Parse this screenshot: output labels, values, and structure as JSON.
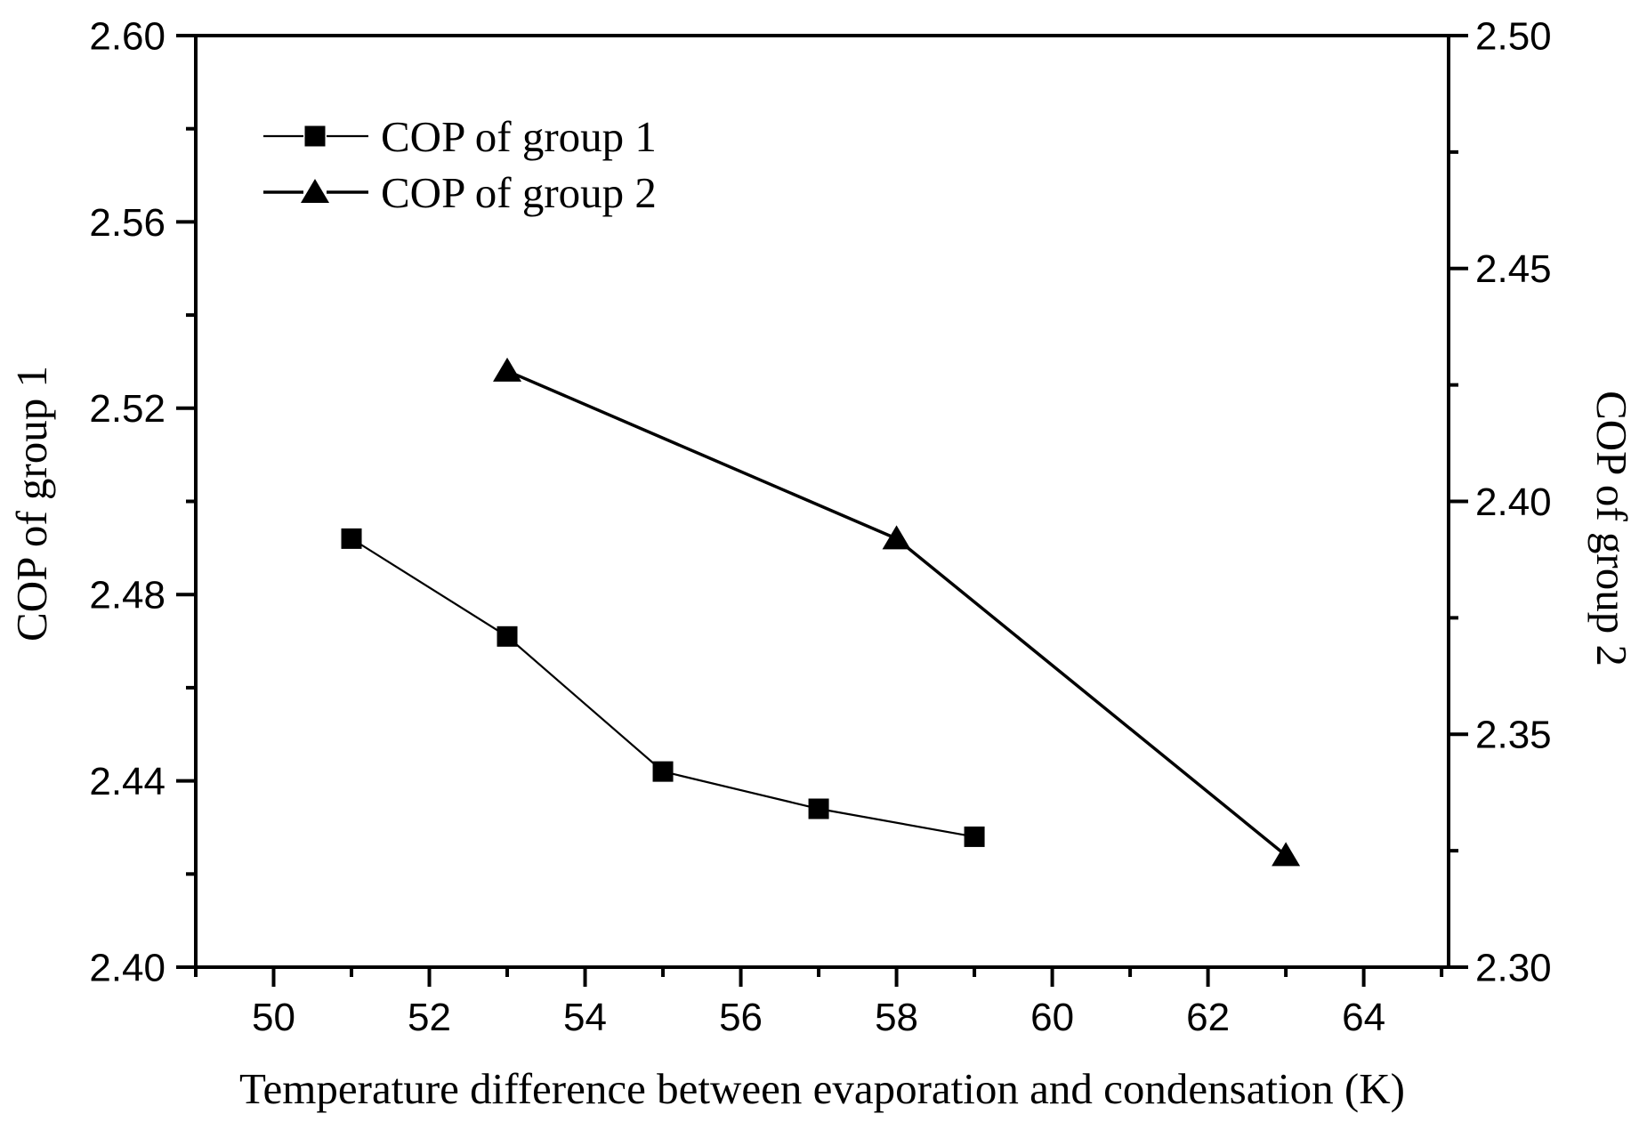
{
  "figure": {
    "background": "#ffffff",
    "ink_color": "#000000"
  },
  "chart_data": {
    "type": "line",
    "title": "",
    "xlabel": "Temperature difference  between evaporation and condensation (K)",
    "ylabel_left": "COP of group 1",
    "ylabel_right": "COP of group 2",
    "grid": false,
    "x_axis": {
      "range": [
        49.0,
        65.09
      ],
      "major_ticks": [
        50,
        52,
        54,
        56,
        58,
        60,
        62,
        64
      ],
      "minor_ticks": [
        49,
        51,
        53,
        55,
        57,
        59,
        61,
        63,
        65
      ],
      "tick_labels": [
        "50",
        "52",
        "54",
        "56",
        "58",
        "60",
        "62",
        "64"
      ]
    },
    "y_axis_left": {
      "range": [
        2.4,
        2.6
      ],
      "major_ticks": [
        2.4,
        2.44,
        2.48,
        2.52,
        2.56,
        2.6
      ],
      "minor_ticks": [
        2.42,
        2.46,
        2.5,
        2.54,
        2.58
      ],
      "tick_labels": [
        "2.40",
        "2.44",
        "2.48",
        "2.52",
        "2.56",
        "2.60"
      ]
    },
    "y_axis_right": {
      "range": [
        2.3,
        2.5
      ],
      "major_ticks": [
        2.3,
        2.35,
        2.4,
        2.45,
        2.5
      ],
      "minor_ticks": [
        2.325,
        2.375,
        2.425,
        2.475
      ],
      "tick_labels": [
        "2.30",
        "2.35",
        "2.40",
        "2.45",
        "2.50"
      ]
    },
    "series": [
      {
        "name": "COP of group 1",
        "axis": "left",
        "marker": "square",
        "x": [
          51,
          53,
          55,
          57,
          59
        ],
        "values": [
          2.492,
          2.471,
          2.442,
          2.434,
          2.428
        ]
      },
      {
        "name": "COP of group 2",
        "axis": "right",
        "marker": "triangle",
        "x": [
          53,
          58,
          63
        ],
        "values": [
          2.428,
          2.392,
          2.324
        ]
      }
    ],
    "legend": {
      "position": "top-left-inside",
      "entries": [
        "COP of group 1",
        "COP of group 2"
      ]
    }
  }
}
